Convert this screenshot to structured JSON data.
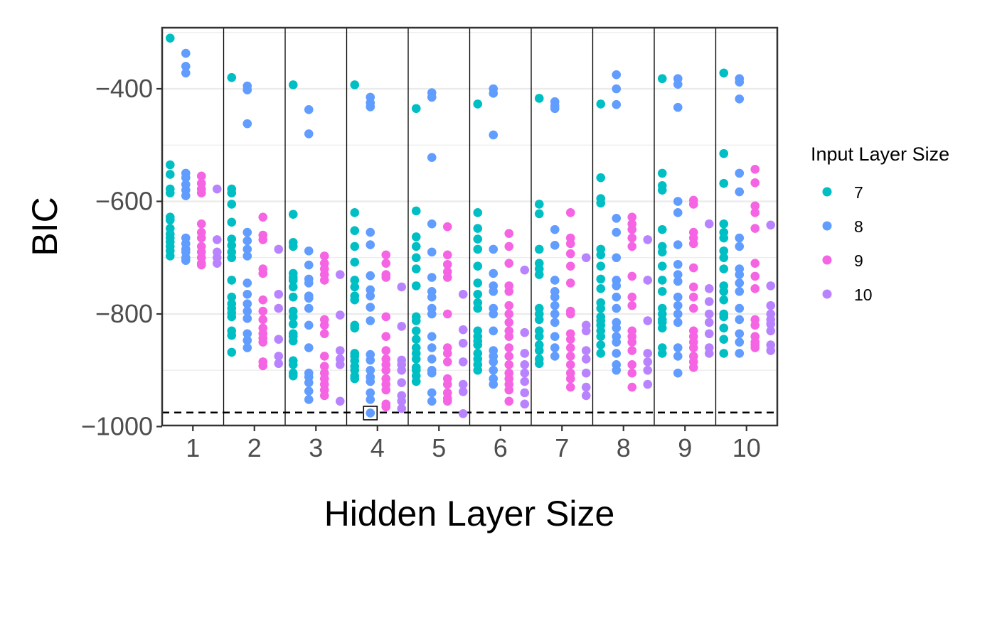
{
  "chart_data": {
    "type": "scatter",
    "title": "",
    "xlabel": "Hidden Layer Size",
    "ylabel": "BIC",
    "categories": [
      "1",
      "2",
      "3",
      "4",
      "5",
      "6",
      "7",
      "8",
      "9",
      "10"
    ],
    "ylim": [
      -1000,
      -300
    ],
    "yticks": [
      -400,
      -600,
      -800,
      -1000
    ],
    "ytick_labels": [
      "−400",
      "−600",
      "−800",
      "−1000"
    ],
    "grid": true,
    "reference_line": {
      "y": -975,
      "style": "dashed"
    },
    "highlight": {
      "category": "4",
      "series": "8",
      "y": -976
    },
    "legend": {
      "title": "Input Layer Size",
      "position": "right"
    },
    "colors": {
      "7": "#00BFC4",
      "8": "#619CFF",
      "9": "#F564E3",
      "10": "#B983FF"
    },
    "series": [
      {
        "name": "7",
        "values": [
          [
            -310,
            -535,
            -552,
            -578,
            -585,
            -628,
            -633,
            -648,
            -658,
            -665,
            -672,
            -680,
            -688,
            -697
          ],
          [
            -380,
            -578,
            -585,
            -605,
            -637,
            -667,
            -678,
            -690,
            -700,
            -740,
            -770,
            -782,
            -790,
            -798,
            -805,
            -830,
            -838,
            -868
          ],
          [
            -393,
            -623,
            -673,
            -680,
            -728,
            -735,
            -740,
            -752,
            -770,
            -795,
            -805,
            -818,
            -835,
            -840,
            -848,
            -883,
            -890,
            -905,
            -910
          ],
          [
            -393,
            -620,
            -652,
            -680,
            -708,
            -740,
            -752,
            -768,
            -775,
            -820,
            -825,
            -870,
            -875,
            -883,
            -893,
            -900,
            -910,
            -915
          ],
          [
            -435,
            -617,
            -663,
            -680,
            -700,
            -720,
            -750,
            -805,
            -812,
            -830,
            -845,
            -860,
            -870,
            -880,
            -895,
            -900,
            -910,
            -920
          ],
          [
            -427,
            -620,
            -648,
            -667,
            -685,
            -715,
            -745,
            -765,
            -780,
            -790,
            -830,
            -840,
            -848,
            -855,
            -870,
            -880,
            -890,
            -900
          ],
          [
            -417,
            -605,
            -622,
            -685,
            -710,
            -720,
            -730,
            -790,
            -800,
            -810,
            -830,
            -840,
            -855,
            -865,
            -880,
            -888
          ],
          [
            -427,
            -558,
            -595,
            -603,
            -685,
            -695,
            -715,
            -738,
            -755,
            -780,
            -790,
            -805,
            -812,
            -820,
            -830,
            -840,
            -855,
            -870
          ],
          [
            -382,
            -550,
            -572,
            -580,
            -650,
            -680,
            -690,
            -715,
            -740,
            -760,
            -790,
            -800,
            -810,
            -815,
            -825,
            -860,
            -870
          ],
          [
            -372,
            -515,
            -568,
            -640,
            -655,
            -665,
            -688,
            -700,
            -720,
            -750,
            -760,
            -775,
            -800,
            -805,
            -825,
            -845,
            -870
          ]
        ]
      },
      {
        "name": "8",
        "values": [
          [
            -337,
            -360,
            -372,
            -550,
            -558,
            -570,
            -580,
            -590,
            -665,
            -675,
            -685,
            -690,
            -700,
            -705
          ],
          [
            -395,
            -402,
            -462,
            -655,
            -670,
            -685,
            -697,
            -745,
            -765,
            -782,
            -795,
            -808,
            -835,
            -847,
            -860
          ],
          [
            -437,
            -480,
            -688,
            -713,
            -738,
            -745,
            -768,
            -772,
            -790,
            -820,
            -860,
            -905,
            -912,
            -922,
            -937,
            -952
          ],
          [
            -415,
            -425,
            -432,
            -655,
            -677,
            -732,
            -757,
            -768,
            -788,
            -812,
            -872,
            -882,
            -900,
            -912,
            -920,
            -940,
            -952,
            -976
          ],
          [
            -407,
            -415,
            -522,
            -640,
            -690,
            -735,
            -760,
            -770,
            -790,
            -800,
            -840,
            -860,
            -880,
            -900,
            -905,
            -940,
            -955
          ],
          [
            -400,
            -408,
            -482,
            -685,
            -728,
            -750,
            -760,
            -790,
            -800,
            -830,
            -865,
            -875,
            -885,
            -900,
            -915,
            -925
          ],
          [
            -423,
            -430,
            -435,
            -650,
            -678,
            -740,
            -760,
            -770,
            -785,
            -800,
            -815,
            -840,
            -860,
            -875
          ],
          [
            -375,
            -400,
            -428,
            -630,
            -655,
            -700,
            -740,
            -750,
            -770,
            -790,
            -815,
            -825,
            -840,
            -850,
            -870,
            -890,
            -900
          ],
          [
            -382,
            -392,
            -433,
            -600,
            -620,
            -677,
            -712,
            -730,
            -742,
            -770,
            -785,
            -800,
            -815,
            -860,
            -875,
            -905
          ],
          [
            -382,
            -388,
            -418,
            -550,
            -583,
            -665,
            -680,
            -720,
            -730,
            -745,
            -760,
            -790,
            -810,
            -835,
            -850,
            -870
          ]
        ]
      },
      {
        "name": "9",
        "values": [
          [
            -555,
            -568,
            -578,
            -585,
            -640,
            -655,
            -665,
            -680,
            -690,
            -700,
            -710,
            -713
          ],
          [
            -628,
            -660,
            -668,
            -720,
            -728,
            -775,
            -795,
            -810,
            -825,
            -835,
            -843,
            -850,
            -885,
            -892
          ],
          [
            -697,
            -710,
            -720,
            -730,
            -740,
            -810,
            -820,
            -835,
            -875,
            -893,
            -905,
            -915,
            -925,
            -935,
            -945
          ],
          [
            -695,
            -710,
            -730,
            -735,
            -805,
            -840,
            -865,
            -880,
            -890,
            -900,
            -915,
            -925,
            -935,
            -960,
            -965
          ],
          [
            -645,
            -695,
            -712,
            -725,
            -735,
            -800,
            -860,
            -870,
            -885,
            -915,
            -925,
            -940,
            -950,
            -955
          ],
          [
            -657,
            -680,
            -710,
            -750,
            -760,
            -785,
            -800,
            -815,
            -830,
            -840,
            -860,
            -875,
            -890,
            -905,
            -915,
            -925,
            -935,
            -955
          ],
          [
            -620,
            -665,
            -675,
            -693,
            -715,
            -745,
            -795,
            -800,
            -835,
            -845,
            -860,
            -875,
            -890,
            -905,
            -915,
            -930
          ],
          [
            -628,
            -640,
            -650,
            -665,
            -680,
            -733,
            -770,
            -785,
            -830,
            -840,
            -850,
            -865,
            -890,
            -905,
            -930
          ],
          [
            -598,
            -605,
            -655,
            -665,
            -675,
            -718,
            -752,
            -770,
            -790,
            -830,
            -840,
            -850,
            -860,
            -875,
            -885,
            -895
          ],
          [
            -543,
            -567,
            -608,
            -620,
            -648,
            -710,
            -733,
            -755,
            -810,
            -820,
            -840,
            -850,
            -855,
            -860
          ]
        ]
      },
      {
        "name": "10",
        "values": [
          [
            -578,
            -668,
            -690,
            -700,
            -710
          ],
          [
            -685,
            -765,
            -790,
            -845,
            -875,
            -888
          ],
          [
            -730,
            -802,
            -865,
            -880,
            -890,
            -955
          ],
          [
            -752,
            -822,
            -882,
            -890,
            -900,
            -922,
            -945,
            -955,
            -968
          ],
          [
            -765,
            -828,
            -852,
            -885,
            -925,
            -938,
            -977
          ],
          [
            -722,
            -833,
            -870,
            -890,
            -905,
            -920,
            -940,
            -960
          ],
          [
            -700,
            -820,
            -830,
            -865,
            -880,
            -905,
            -930,
            -945
          ],
          [
            -668,
            -740,
            -812,
            -870,
            -885,
            -900,
            -925
          ],
          [
            -640,
            -755,
            -778,
            -800,
            -815,
            -835,
            -860,
            -870
          ],
          [
            -642,
            -750,
            -785,
            -800,
            -810,
            -818,
            -830,
            -855,
            -865
          ]
        ]
      }
    ]
  }
}
